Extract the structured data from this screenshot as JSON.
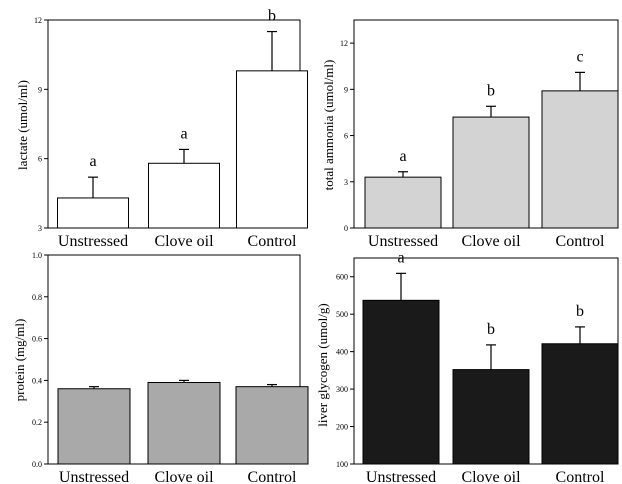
{
  "chart_data": [
    {
      "type": "bar",
      "categories": [
        "Unstressed",
        "Clove oil",
        "Control"
      ],
      "ylabel": "lactate (umol/ml)",
      "ylim": [
        3,
        12
      ],
      "yticks": [
        3,
        6,
        9,
        12
      ],
      "values": [
        4.3,
        5.8,
        9.8
      ],
      "errors": [
        0.9,
        0.6,
        1.7
      ],
      "letters": [
        "a",
        "a",
        "b"
      ],
      "bar_color": "#ffffff"
    },
    {
      "type": "bar",
      "categories": [
        "Unstressed",
        "Clove oil",
        "Control"
      ],
      "ylabel": "total ammonia (umol/ml)",
      "ylim": [
        0,
        13.5
      ],
      "yticks": [
        0,
        3,
        6,
        9,
        12
      ],
      "values": [
        3.3,
        7.2,
        8.9
      ],
      "errors": [
        0.35,
        0.7,
        1.2
      ],
      "letters": [
        "a",
        "b",
        "c"
      ],
      "bar_color": "#d3d3d3"
    },
    {
      "type": "bar",
      "categories": [
        "Unstressed",
        "Clove oil",
        "Control"
      ],
      "ylabel": "protein (mg/ml)",
      "ylim": [
        0,
        1.0
      ],
      "yticks": [
        0.0,
        0.2,
        0.4,
        0.6,
        0.8,
        1.0
      ],
      "ytick_labels": [
        "0.0",
        "0.2",
        "0.4",
        "0.6",
        "0.8",
        "1.0"
      ],
      "values": [
        0.36,
        0.39,
        0.37
      ],
      "errors": [
        0.01,
        0.01,
        0.01
      ],
      "letters": [],
      "bar_color": "#a9a9a9"
    },
    {
      "type": "bar",
      "categories": [
        "Unstressed",
        "Clove oil",
        "Control"
      ],
      "ylabel": "liver glycogen (umol/g)",
      "ylim": [
        100,
        650
      ],
      "yticks": [
        100,
        200,
        300,
        400,
        500,
        600
      ],
      "values": [
        537,
        352,
        421
      ],
      "errors": [
        72,
        66,
        45
      ],
      "letters": [
        "a",
        "b",
        "b"
      ],
      "bar_color": "#1a1a1a"
    }
  ]
}
